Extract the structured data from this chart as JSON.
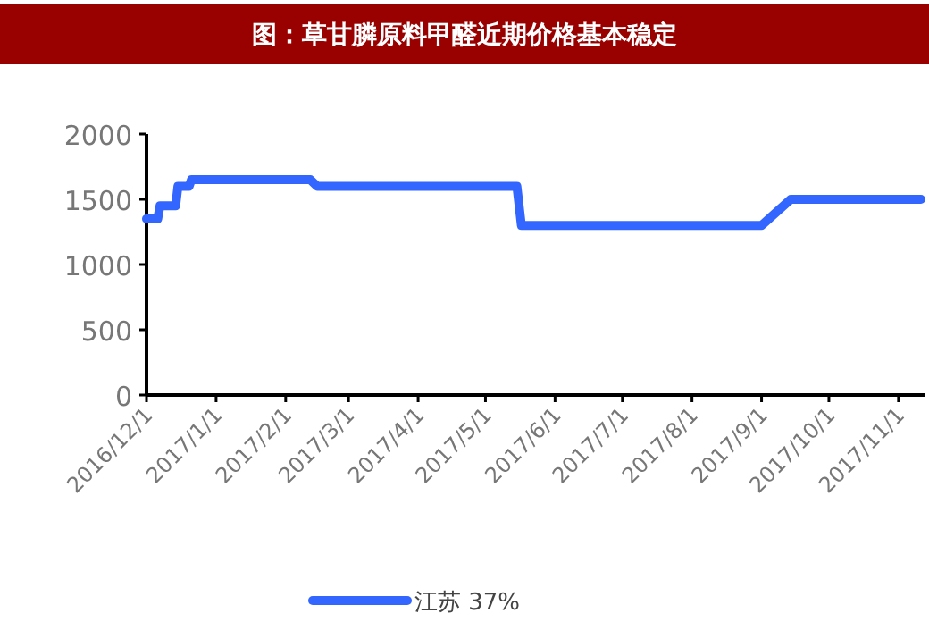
{
  "chart_data": {
    "type": "line",
    "title": "图：草甘膦原料甲醛近期价格基本稳定",
    "series": [
      {
        "name": "江苏 37%",
        "color": "#3366ff",
        "x": [
          "2016-12-01",
          "2016-12-06",
          "2016-12-07",
          "2016-12-14",
          "2016-12-15",
          "2016-12-20",
          "2016-12-21",
          "2017-02-12",
          "2017-02-15",
          "2017-05-15",
          "2017-05-17",
          "2017-09-01",
          "2017-09-14",
          "2017-11-11"
        ],
        "values": [
          1350,
          1350,
          1450,
          1450,
          1600,
          1600,
          1650,
          1650,
          1600,
          1600,
          1300,
          1300,
          1500,
          1500
        ]
      }
    ],
    "xlim": [
      "2016-12-01",
      "2017-11-13"
    ],
    "xticks": [
      {
        "value": "2016-12-01",
        "label": "2016/12/1"
      },
      {
        "value": "2017-01-01",
        "label": "2017/1/1"
      },
      {
        "value": "2017-02-01",
        "label": "2017/2/1"
      },
      {
        "value": "2017-03-01",
        "label": "2017/3/1"
      },
      {
        "value": "2017-04-01",
        "label": "2017/4/1"
      },
      {
        "value": "2017-05-01",
        "label": "2017/5/1"
      },
      {
        "value": "2017-06-01",
        "label": "2017/6/1"
      },
      {
        "value": "2017-07-01",
        "label": "2017/7/1"
      },
      {
        "value": "2017-08-01",
        "label": "2017/8/1"
      },
      {
        "value": "2017-09-01",
        "label": "2017/9/1"
      },
      {
        "value": "2017-10-01",
        "label": "2017/10/1"
      },
      {
        "value": "2017-11-01",
        "label": "2017/11/1"
      }
    ],
    "ylim": [
      0,
      2000
    ],
    "yticks": [
      0,
      500,
      1000,
      1500,
      2000
    ],
    "grid": false,
    "legend": "bottom",
    "marker": "none",
    "line_style": "solid"
  }
}
